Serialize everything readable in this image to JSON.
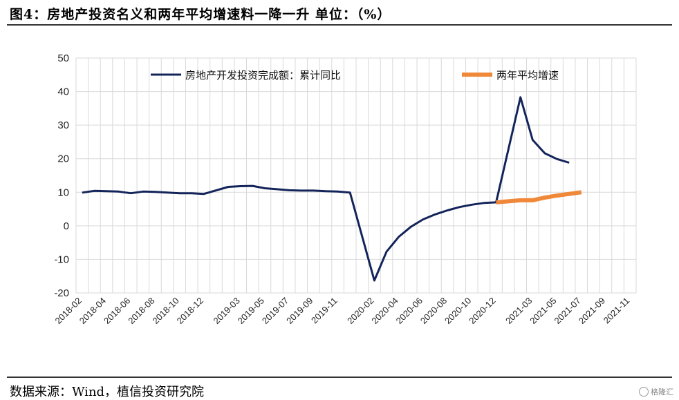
{
  "header": {
    "title": "图4：房地产投资名义和两年平均增速料一降一升 单位：（%）"
  },
  "footer": {
    "source": "数据来源：Wind，植信投资研究院",
    "watermark": "格隆汇"
  },
  "chart_data": {
    "type": "line",
    "title": "",
    "xlabel": "",
    "ylabel": "",
    "ylim": [
      -20,
      50
    ],
    "yticks": [
      -20,
      -10,
      0,
      10,
      20,
      30,
      40,
      50
    ],
    "grid": true,
    "legend_position": "top",
    "x_categories": [
      "2018-02",
      "2018-03",
      "2018-04",
      "2018-05",
      "2018-06",
      "2018-07",
      "2018-08",
      "2018-09",
      "2018-10",
      "2018-11",
      "2018-12",
      "2019-01",
      "2019-02",
      "2019-03",
      "2019-04",
      "2019-05",
      "2019-06",
      "2019-07",
      "2019-08",
      "2019-09",
      "2019-10",
      "2019-11",
      "2019-12",
      "2020-01",
      "2020-02",
      "2020-03",
      "2020-04",
      "2020-05",
      "2020-06",
      "2020-07",
      "2020-08",
      "2020-09",
      "2020-10",
      "2020-11",
      "2020-12",
      "2021-01",
      "2021-02",
      "2021-03",
      "2021-04",
      "2021-05",
      "2021-06",
      "2021-07",
      "2021-08",
      "2021-09",
      "2021-10",
      "2021-11"
    ],
    "x_tick_labels": [
      "2018-02",
      "2018-04",
      "2018-06",
      "2018-08",
      "2018-10",
      "2018-12",
      "2019-03",
      "2019-05",
      "2019-07",
      "2019-09",
      "2019-11",
      "2020-02",
      "2020-04",
      "2020-06",
      "2020-08",
      "2020-10",
      "2020-12",
      "2021-03",
      "2021-05",
      "2021-07",
      "2021-09",
      "2021-11"
    ],
    "series": [
      {
        "name": "房地产开发投资完成额：累计同比",
        "color": "#13245a",
        "points": [
          [
            "2018-02",
            9.9
          ],
          [
            "2018-03",
            10.4
          ],
          [
            "2018-04",
            10.3
          ],
          [
            "2018-05",
            10.2
          ],
          [
            "2018-06",
            9.7
          ],
          [
            "2018-07",
            10.2
          ],
          [
            "2018-08",
            10.1
          ],
          [
            "2018-09",
            9.9
          ],
          [
            "2018-10",
            9.7
          ],
          [
            "2018-11",
            9.7
          ],
          [
            "2018-12",
            9.5
          ],
          [
            "2019-02",
            11.6
          ],
          [
            "2019-03",
            11.8
          ],
          [
            "2019-04",
            11.9
          ],
          [
            "2019-05",
            11.2
          ],
          [
            "2019-06",
            10.9
          ],
          [
            "2019-07",
            10.6
          ],
          [
            "2019-08",
            10.5
          ],
          [
            "2019-09",
            10.5
          ],
          [
            "2019-10",
            10.3
          ],
          [
            "2019-11",
            10.2
          ],
          [
            "2019-12",
            9.9
          ],
          [
            "2020-02",
            -16.3
          ],
          [
            "2020-03",
            -7.7
          ],
          [
            "2020-04",
            -3.3
          ],
          [
            "2020-05",
            -0.3
          ],
          [
            "2020-06",
            1.9
          ],
          [
            "2020-07",
            3.4
          ],
          [
            "2020-08",
            4.6
          ],
          [
            "2020-09",
            5.6
          ],
          [
            "2020-10",
            6.3
          ],
          [
            "2020-11",
            6.8
          ],
          [
            "2020-12",
            7.0
          ],
          [
            "2021-02",
            38.3
          ],
          [
            "2021-03",
            25.6
          ],
          [
            "2021-04",
            21.6
          ],
          [
            "2021-05",
            19.9
          ],
          [
            "2021-06",
            18.8
          ]
        ]
      },
      {
        "name": "两年平均增速",
        "color": "#f0883a",
        "points": [
          [
            "2020-12",
            7.0
          ],
          [
            "2021-02",
            7.6
          ],
          [
            "2021-03",
            7.6
          ],
          [
            "2021-04",
            8.4
          ],
          [
            "2021-05",
            9.0
          ],
          [
            "2021-06",
            9.5
          ],
          [
            "2021-07",
            10.0
          ]
        ]
      }
    ]
  }
}
